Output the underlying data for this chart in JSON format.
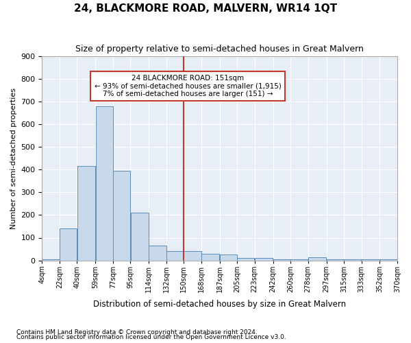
{
  "title": "24, BLACKMORE ROAD, MALVERN, WR14 1QT",
  "subtitle": "Size of property relative to semi-detached houses in Great Malvern",
  "xlabel": "Distribution of semi-detached houses by size in Great Malvern",
  "ylabel": "Number of semi-detached properties",
  "bar_color": "#c9d9ec",
  "bar_edge_color": "#5b8db8",
  "background_color": "#e8eef5",
  "grid_color": "#ffffff",
  "vline_color": "#c0392b",
  "vline_x": 150,
  "annotation_title": "24 BLACKMORE ROAD: 151sqm",
  "annotation_line1": "← 93% of semi-detached houses are smaller (1,915)",
  "annotation_line2": "7% of semi-detached houses are larger (151) →",
  "footnote1": "Contains HM Land Registry data © Crown copyright and database right 2024.",
  "footnote2": "Contains public sector information licensed under the Open Government Licence v3.0.",
  "bin_edges": [
    4,
    22,
    40,
    59,
    77,
    95,
    114,
    132,
    150,
    168,
    187,
    205,
    223,
    242,
    260,
    278,
    297,
    315,
    333,
    352,
    370
  ],
  "bin_labels": [
    "4sqm",
    "22sqm",
    "40sqm",
    "59sqm",
    "77sqm",
    "95sqm",
    "114sqm",
    "132sqm",
    "150sqm",
    "168sqm",
    "187sqm",
    "205sqm",
    "223sqm",
    "242sqm",
    "260sqm",
    "278sqm",
    "297sqm",
    "315sqm",
    "333sqm",
    "352sqm",
    "370sqm"
  ],
  "bar_heights": [
    5,
    140,
    415,
    680,
    395,
    210,
    65,
    40,
    40,
    30,
    25,
    12,
    12,
    5,
    5,
    15,
    5,
    5,
    5,
    5
  ],
  "ylim": [
    0,
    900
  ],
  "yticks": [
    0,
    100,
    200,
    300,
    400,
    500,
    600,
    700,
    800,
    900
  ]
}
